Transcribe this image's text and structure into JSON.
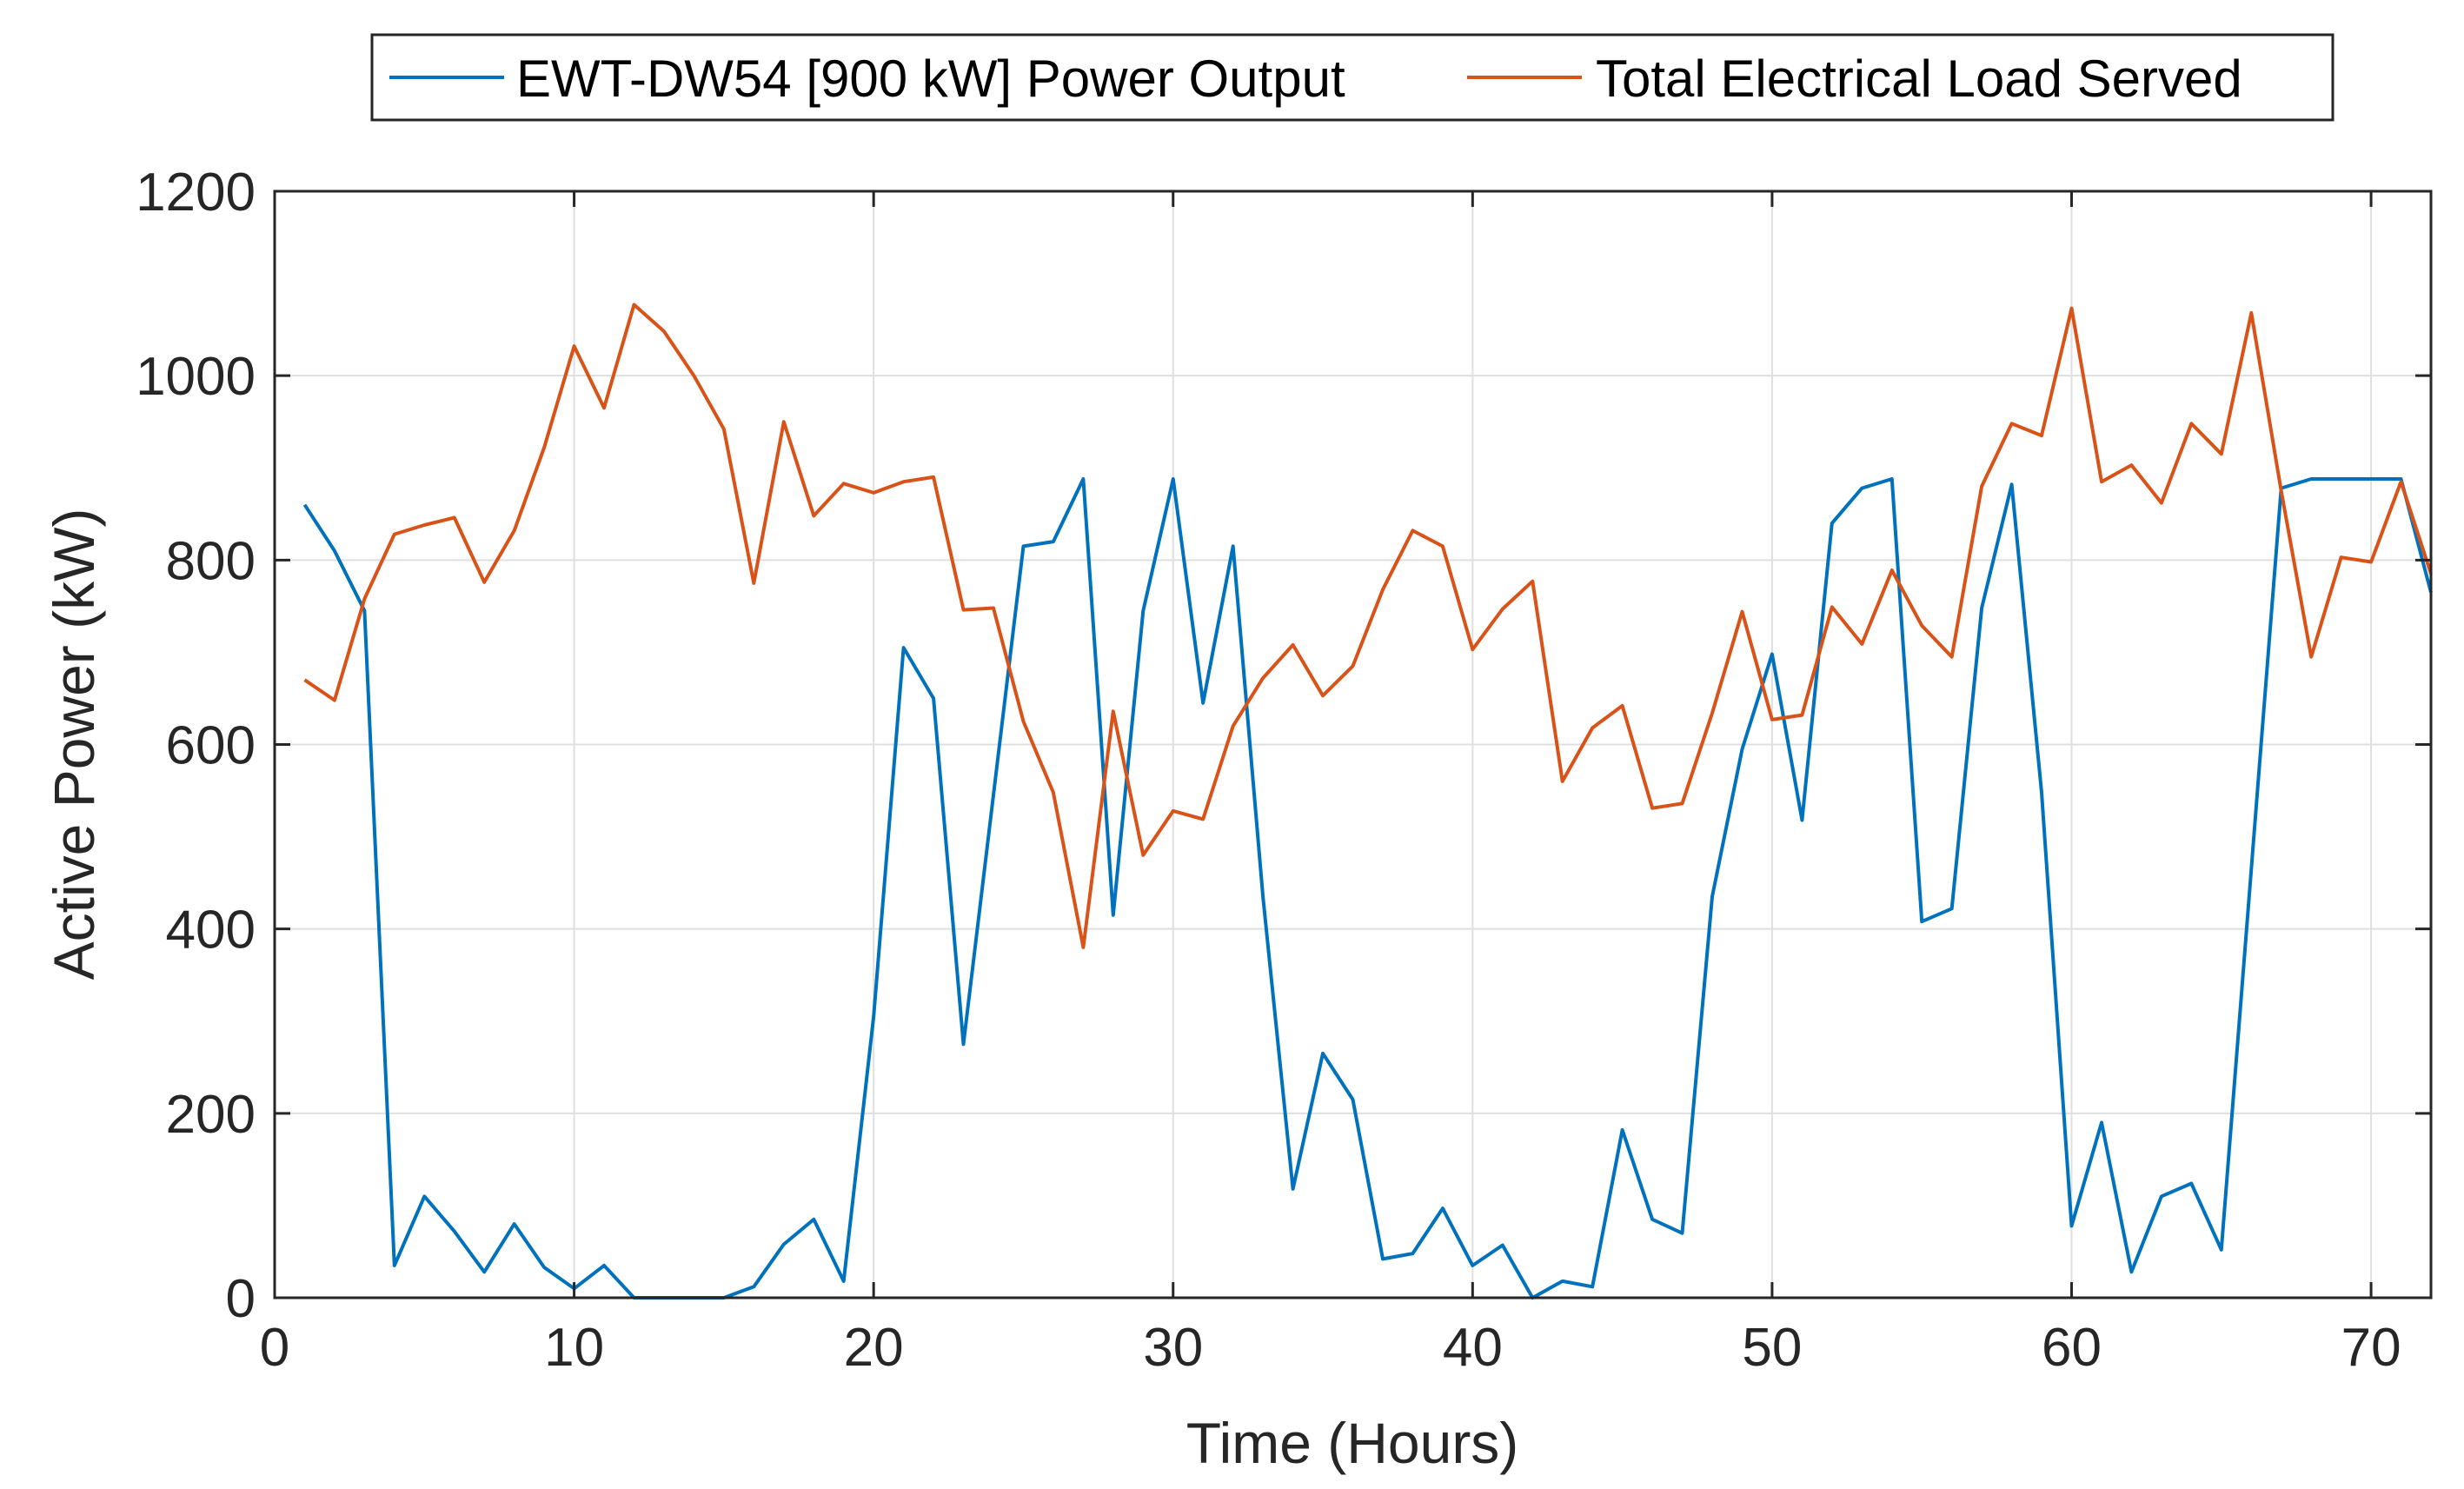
{
  "chart_data": {
    "type": "line",
    "title": "",
    "xlabel": "Time (Hours)",
    "ylabel": "Active Power (kW)",
    "xlim": [
      0,
      72
    ],
    "ylim": [
      0,
      1200
    ],
    "xticks": [
      0,
      10,
      20,
      30,
      40,
      50,
      60,
      70
    ],
    "yticks": [
      0,
      200,
      400,
      600,
      800,
      1000,
      1200
    ],
    "grid": true,
    "legend_position": "top",
    "x": [
      1,
      2,
      3,
      4,
      5,
      6,
      7,
      8,
      9,
      10,
      11,
      12,
      13,
      14,
      15,
      16,
      17,
      18,
      19,
      20,
      21,
      22,
      23,
      24,
      25,
      26,
      27,
      28,
      29,
      30,
      31,
      32,
      33,
      34,
      35,
      36,
      37,
      38,
      39,
      40,
      41,
      42,
      43,
      44,
      45,
      46,
      47,
      48,
      49,
      50,
      51,
      52,
      53,
      54,
      55,
      56,
      57,
      58,
      59,
      60,
      61,
      62,
      63,
      64,
      65,
      66,
      67,
      68,
      69,
      70,
      71,
      72
    ],
    "series": [
      {
        "name": "EWT-DW54 [900 kW] Power Output",
        "color": "#0072BD",
        "values": [
          860,
          810,
          745,
          35,
          110,
          72,
          28,
          80,
          33,
          10,
          35,
          0,
          0,
          0,
          0,
          12,
          58,
          85,
          18,
          305,
          705,
          650,
          275,
          545,
          815,
          820,
          888,
          415,
          745,
          888,
          645,
          815,
          435,
          118,
          265,
          215,
          42,
          48,
          97,
          35,
          57,
          0,
          18,
          12,
          182,
          85,
          70,
          435,
          595,
          698,
          518,
          840,
          878,
          888,
          408,
          422,
          748,
          882,
          548,
          78,
          190,
          28,
          110,
          124,
          52,
          465,
          878,
          888,
          888,
          888,
          888,
          765
        ]
      },
      {
        "name": "Total Electrical Load Served",
        "color": "#D95319",
        "values": [
          670,
          648,
          758,
          828,
          838,
          846,
          776,
          832,
          922,
          1032,
          965,
          1077,
          1048,
          1000,
          942,
          775,
          950,
          848,
          883,
          873,
          885,
          890,
          746,
          748,
          625,
          548,
          380,
          636,
          480,
          528,
          519,
          620,
          672,
          708,
          653,
          685,
          768,
          832,
          815,
          703,
          747,
          777,
          560,
          618,
          642,
          531,
          536,
          634,
          744,
          627,
          632,
          749,
          709,
          789,
          729,
          695,
          880,
          948,
          935,
          1073,
          885,
          903,
          862,
          948,
          915,
          1068,
          875,
          695,
          803,
          798,
          885,
          785
        ]
      }
    ]
  }
}
